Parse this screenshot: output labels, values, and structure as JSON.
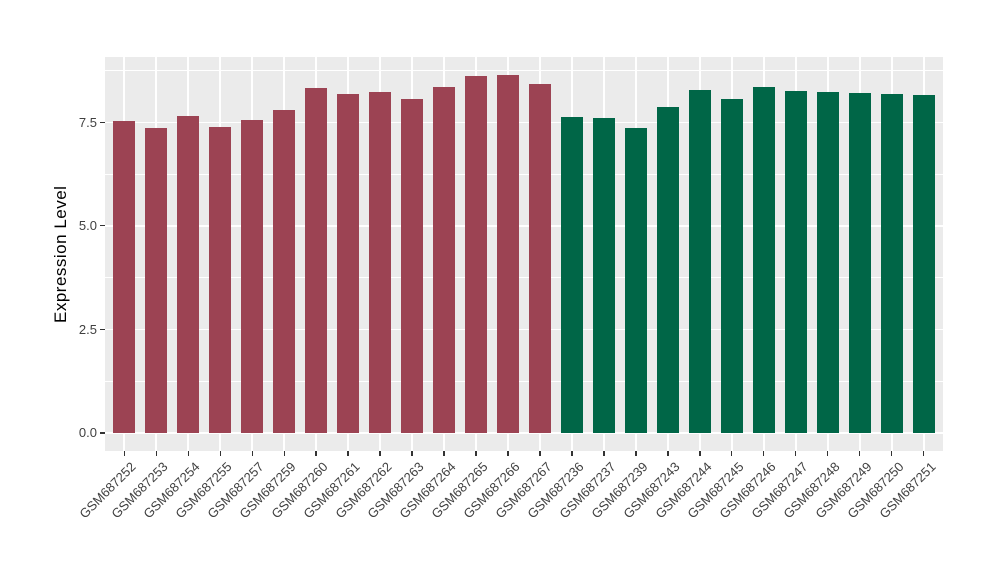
{
  "chart_data": {
    "type": "bar",
    "title": "",
    "xlabel": "",
    "ylabel": "Expression Level",
    "ylim": [
      -0.435,
      9.075
    ],
    "y_major_ticks": [
      0,
      2.5,
      5,
      7.5
    ],
    "y_tick_labels": [
      "0.0",
      "2.5",
      "5.0",
      "7.5"
    ],
    "y_minor_gridlines": [
      1.25,
      3.75,
      6.25,
      8.75
    ],
    "grid": "major and minor white gridlines on gray panel",
    "legend": "none",
    "panel_background": "#EBEBEB",
    "gridline_color": "#FFFFFF",
    "axis_text_color": "#404040",
    "axis_title_color": "#000000",
    "series": [
      {
        "name": "left-group-red",
        "color": "#9C4353",
        "categories": [
          "GSM687252",
          "GSM687253",
          "GSM687254",
          "GSM687255",
          "GSM687257",
          "GSM687259",
          "GSM687260",
          "GSM687261",
          "GSM687262",
          "GSM687263",
          "GSM687264",
          "GSM687265",
          "GSM687266",
          "GSM687267"
        ],
        "values": [
          7.53,
          7.35,
          7.65,
          7.38,
          7.55,
          7.79,
          8.33,
          8.17,
          8.24,
          8.05,
          8.35,
          8.62,
          8.65,
          8.42
        ]
      },
      {
        "name": "right-group-green",
        "color": "#006647",
        "categories": [
          "GSM687236",
          "GSM687237",
          "GSM687239",
          "GSM687243",
          "GSM687244",
          "GSM687245",
          "GSM687246",
          "GSM687247",
          "GSM687248",
          "GSM687249",
          "GSM687250",
          "GSM687251"
        ],
        "values": [
          7.63,
          7.6,
          7.37,
          7.86,
          8.28,
          8.07,
          8.36,
          8.26,
          8.24,
          8.2,
          8.18,
          8.15
        ]
      }
    ]
  }
}
